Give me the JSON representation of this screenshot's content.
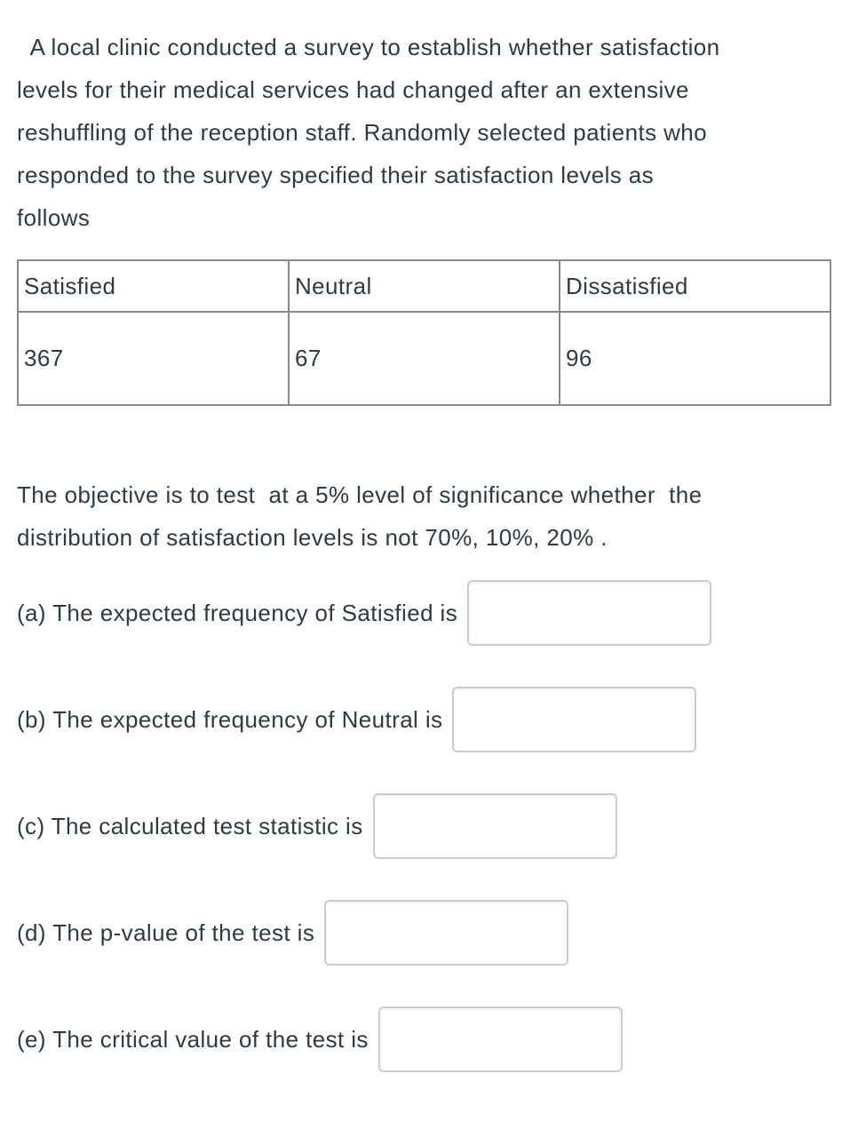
{
  "colors": {
    "text": "#2d3b45",
    "table_border": "#8a8a8a",
    "input_border": "#c7cdd1",
    "background": "#ffffff"
  },
  "intro": {
    "lines": [
      " A local clinic conducted a survey to establish whether satisfaction",
      "levels for their medical services had changed after an extensive",
      "reshuffling of the reception staff. Randomly selected patients who",
      "responded to the survey specified their satisfaction levels as",
      "follows"
    ]
  },
  "table": {
    "headers": [
      "Satisfied",
      "Neutral",
      "Dissatisfied"
    ],
    "values": [
      "367",
      "67",
      "96"
    ]
  },
  "objective": {
    "lines": [
      "The objective is to test  at a 5% level of significance whether  the",
      "distribution of satisfaction levels is not 70%, 10%, 20% ."
    ]
  },
  "questions": [
    {
      "id": "a",
      "label": "(a) The expected frequency of Satisfied is",
      "value": ""
    },
    {
      "id": "b",
      "label": "(b) The expected frequency of Neutral is",
      "value": ""
    },
    {
      "id": "c",
      "label": "(c) The calculated test statistic is",
      "value": ""
    },
    {
      "id": "d",
      "label": "(d) The p-value of the test is",
      "value": ""
    },
    {
      "id": "e",
      "label": "(e) The critical value of the test is",
      "value": ""
    }
  ]
}
